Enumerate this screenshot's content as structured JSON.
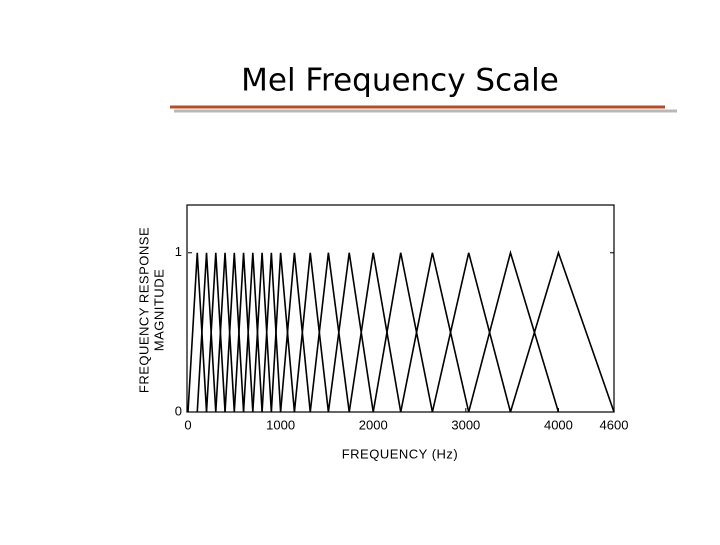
{
  "chart_data": {
    "type": "line",
    "title": "Mel Frequency Scale",
    "xlabel": "FREQUENCY (Hz)",
    "ylabel": [
      "FREQUENCY RESPONSE",
      "MAGNITUDE"
    ],
    "xlim": [
      0,
      4600
    ],
    "ylim": [
      0,
      1.3
    ],
    "xticks": [
      0,
      1000,
      2000,
      3000,
      4000,
      4600
    ],
    "yticks": [
      0,
      1
    ],
    "color": "#000000",
    "series": [
      {
        "x": [
          0,
          100,
          200
        ],
        "values": [
          0,
          1,
          0
        ]
      },
      {
        "x": [
          100,
          200,
          300
        ],
        "values": [
          0,
          1,
          0
        ]
      },
      {
        "x": [
          200,
          300,
          400
        ],
        "values": [
          0,
          1,
          0
        ]
      },
      {
        "x": [
          300,
          400,
          500
        ],
        "values": [
          0,
          1,
          0
        ]
      },
      {
        "x": [
          400,
          500,
          600
        ],
        "values": [
          0,
          1,
          0
        ]
      },
      {
        "x": [
          500,
          600,
          700
        ],
        "values": [
          0,
          1,
          0
        ]
      },
      {
        "x": [
          600,
          700,
          800
        ],
        "values": [
          0,
          1,
          0
        ]
      },
      {
        "x": [
          700,
          800,
          900
        ],
        "values": [
          0,
          1,
          0
        ]
      },
      {
        "x": [
          800,
          900,
          1000
        ],
        "values": [
          0,
          1,
          0
        ]
      },
      {
        "x": [
          900,
          1000,
          1149
        ],
        "values": [
          0,
          1,
          0
        ]
      },
      {
        "x": [
          1000,
          1149,
          1320
        ],
        "values": [
          0,
          1,
          0
        ]
      },
      {
        "x": [
          1149,
          1320,
          1516
        ],
        "values": [
          0,
          1,
          0
        ]
      },
      {
        "x": [
          1320,
          1516,
          1741
        ],
        "values": [
          0,
          1,
          0
        ]
      },
      {
        "x": [
          1516,
          1741,
          2000
        ],
        "values": [
          0,
          1,
          0
        ]
      },
      {
        "x": [
          1741,
          2000,
          2297
        ],
        "values": [
          0,
          1,
          0
        ]
      },
      {
        "x": [
          2000,
          2297,
          2639
        ],
        "values": [
          0,
          1,
          0
        ]
      },
      {
        "x": [
          2297,
          2639,
          3031
        ],
        "values": [
          0,
          1,
          0
        ]
      },
      {
        "x": [
          2639,
          3031,
          3482
        ],
        "values": [
          0,
          1,
          0
        ]
      },
      {
        "x": [
          3031,
          3482,
          4000
        ],
        "values": [
          0,
          1,
          0
        ]
      },
      {
        "x": [
          3482,
          4000,
          4600
        ],
        "values": [
          0,
          1,
          0
        ]
      }
    ]
  }
}
